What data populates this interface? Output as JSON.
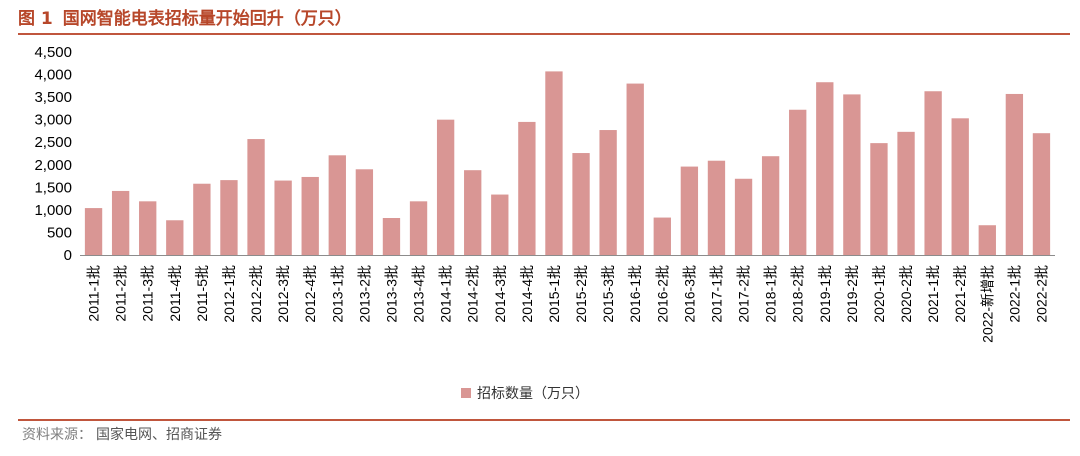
{
  "header": {
    "figure_no": "图 1",
    "title": "国网智能电表招标量开始回升（万只）"
  },
  "legend": {
    "label": "招标数量（万只）"
  },
  "source": {
    "prefix": "资料来源：",
    "text": "国家电网、招商证券"
  },
  "colors": {
    "bar": "#d99694",
    "title": "#b7472a",
    "rule": "#c0563d"
  },
  "chart_data": {
    "type": "bar",
    "categories": [
      "2011-1批",
      "2011-2批",
      "2011-3批",
      "2011-4批",
      "2011-5批",
      "2012-1批",
      "2012-2批",
      "2012-3批",
      "2012-4批",
      "2013-1批",
      "2013-2批",
      "2013-3批",
      "2013-4批",
      "2014-1批",
      "2014-2批",
      "2014-3批",
      "2014-4批",
      "2015-1批",
      "2015-2批",
      "2015-3批",
      "2016-1批",
      "2016-2批",
      "2016-3批",
      "2017-1批",
      "2017-2批",
      "2018-1批",
      "2018-2批",
      "2019-1批",
      "2019-2批",
      "2020-1批",
      "2020-2批",
      "2021-1批",
      "2021-2批",
      "2022-新增批",
      "2022-1批",
      "2022-2批"
    ],
    "series": [
      {
        "name": "招标数量（万只）",
        "values": [
          1040,
          1420,
          1190,
          770,
          1580,
          1660,
          2570,
          1650,
          1730,
          2210,
          1900,
          820,
          1190,
          3000,
          1880,
          1340,
          2950,
          4070,
          2260,
          2770,
          3800,
          830,
          1960,
          2090,
          1690,
          2190,
          3220,
          3830,
          3560,
          2480,
          2730,
          3630,
          3030,
          660,
          3570,
          2700
        ]
      }
    ],
    "ylim": [
      0,
      4500
    ],
    "yticks": [
      "0",
      "500",
      "1,000",
      "1,500",
      "2,000",
      "2,500",
      "3,000",
      "3,500",
      "4,000",
      "4,500"
    ],
    "grid": false,
    "legend_position": "bottom"
  }
}
